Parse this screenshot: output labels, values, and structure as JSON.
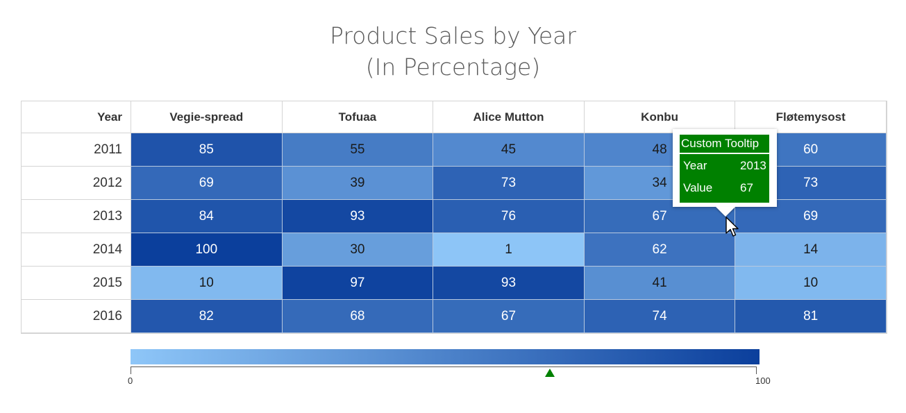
{
  "chart_data": {
    "type": "heatmap",
    "title": "Product Sales by Year",
    "subtitle": "(In Percentage)",
    "row_header": "Year",
    "columns": [
      "Vegie-spread",
      "Tofuaa",
      "Alice Mutton",
      "Konbu",
      "Fløtemysost"
    ],
    "rows": [
      "2011",
      "2012",
      "2013",
      "2014",
      "2015",
      "2016"
    ],
    "values": [
      [
        85,
        55,
        45,
        48,
        60
      ],
      [
        69,
        39,
        73,
        34,
        73
      ],
      [
        84,
        93,
        76,
        67,
        69
      ],
      [
        100,
        30,
        1,
        62,
        14
      ],
      [
        10,
        97,
        93,
        41,
        10
      ],
      [
        82,
        68,
        67,
        74,
        81
      ]
    ],
    "color_range": {
      "min": 0,
      "max": 100,
      "low_color": "#8ec6f8",
      "high_color": "#0b3f9c"
    },
    "legend": {
      "min_label": "0",
      "max_label": "100",
      "placement": "bottom",
      "pointer_value": 67,
      "pointer_color": "#008000"
    }
  },
  "tooltip": {
    "header": "Custom Tooltip",
    "rows": [
      {
        "key": "Year",
        "value": "2013"
      },
      {
        "key": "Value",
        "value": "67"
      }
    ],
    "background": "#008000"
  }
}
